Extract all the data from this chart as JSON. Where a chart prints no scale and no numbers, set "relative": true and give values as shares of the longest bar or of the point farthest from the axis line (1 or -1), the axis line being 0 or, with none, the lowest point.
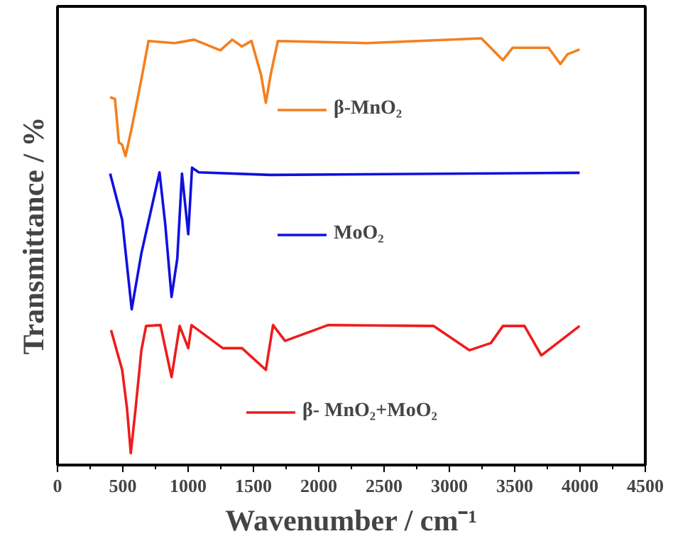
{
  "chart_data": {
    "type": "line",
    "relative": true,
    "xlabel": "Wavenumber / cm⁻¹",
    "ylabel": "Transmittance / %",
    "xlim": [
      0,
      4500
    ],
    "xticks": [
      0,
      500,
      1000,
      1500,
      2000,
      2500,
      3000,
      3500,
      4000,
      4500
    ],
    "legend": "right",
    "grid": false,
    "series": [
      {
        "name": "β-MnO₂",
        "color": "#f47f1f",
        "x": [
          403,
          440,
          470,
          495,
          521,
          568,
          642,
          697,
          898,
          1045,
          1247,
          1338,
          1412,
          1485,
          1558,
          1595,
          1632,
          1687,
          2365,
          3245,
          3410,
          3484,
          3759,
          3850,
          3905,
          3997
        ],
        "values": [
          0.862,
          0.858,
          0.756,
          0.751,
          0.724,
          0.79,
          0.904,
          0.994,
          0.989,
          0.997,
          0.972,
          0.997,
          0.981,
          0.994,
          0.915,
          0.849,
          0.915,
          0.994,
          0.989,
          1.0,
          0.949,
          0.978,
          0.978,
          0.94,
          0.963,
          0.974
        ]
      },
      {
        "name": "MoO₂",
        "color": "#1010e0",
        "x": [
          403,
          495,
          568,
          642,
          781,
          825,
          873,
          917,
          953,
          1001,
          1030,
          1082,
          1632,
          3997
        ],
        "values": [
          0.683,
          0.575,
          0.365,
          0.496,
          0.686,
          0.564,
          0.394,
          0.484,
          0.683,
          0.541,
          0.697,
          0.686,
          0.68,
          0.685
        ]
      },
      {
        "name": "β- MnO₂+MoO₂",
        "color": "#ee1c1c",
        "x": [
          410,
          495,
          532,
          561,
          598,
          642,
          678,
          788,
          873,
          935,
          1001,
          1026,
          1265,
          1412,
          1595,
          1650,
          1742,
          2071,
          2878,
          3153,
          3318,
          3410,
          3575,
          3704,
          3997
        ],
        "values": [
          0.316,
          0.223,
          0.133,
          0.028,
          0.133,
          0.269,
          0.326,
          0.328,
          0.206,
          0.326,
          0.274,
          0.328,
          0.274,
          0.274,
          0.223,
          0.328,
          0.291,
          0.328,
          0.326,
          0.269,
          0.286,
          0.326,
          0.326,
          0.257,
          0.326
        ]
      }
    ]
  }
}
